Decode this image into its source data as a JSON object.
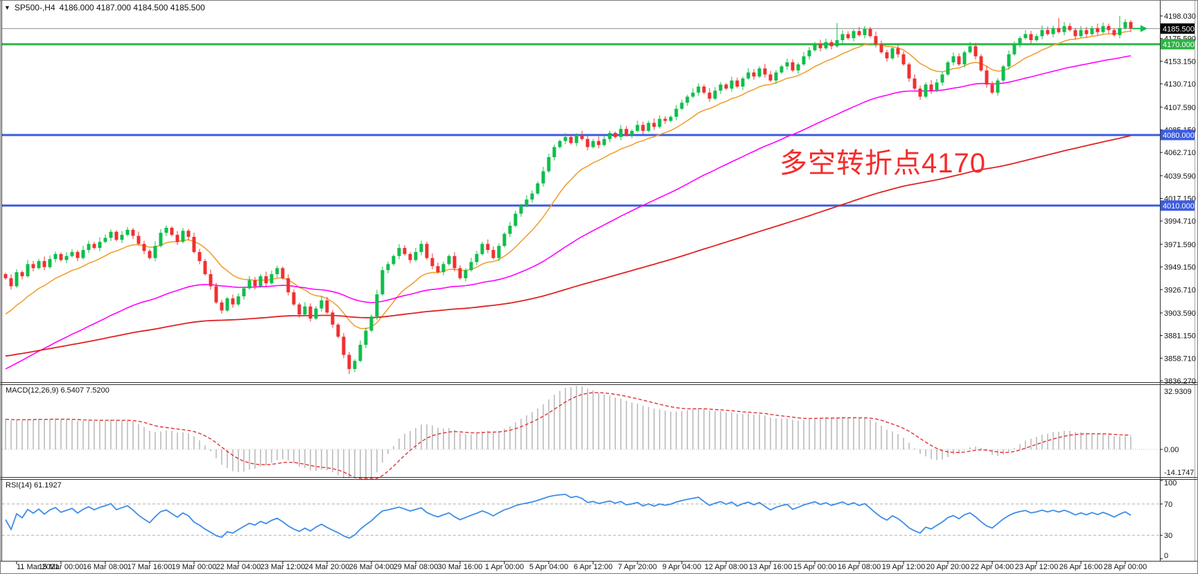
{
  "header": {
    "dropdown_arrow": "▼",
    "title": "SP500-,H4",
    "quote": "4186.000 4187.000 4184.500 4185.500"
  },
  "macd_panel": {
    "title": "MACD(12,26,9)",
    "values": "6.5407 7.5200",
    "scale_max_label": "32.9309",
    "scale_zero_label": "0.00",
    "scale_min_label": "-14.1747"
  },
  "rsi_panel": {
    "title": "RSI(14)",
    "value": "61.1927",
    "scale_labels": [
      "100",
      "70",
      "30",
      "0"
    ],
    "scale_values": [
      100,
      70,
      30,
      0
    ],
    "level_lines": [
      70,
      30
    ]
  },
  "main_chart": {
    "annotation": {
      "text": "多空转折点4170",
      "color": "#F52C2C"
    },
    "price_ticks": [
      "4198.030",
      "4175.590",
      "4153.150",
      "4130.710",
      "4107.590",
      "4085.150",
      "4062.710",
      "4039.590",
      "4017.150",
      "3994.710",
      "3971.590",
      "3949.150",
      "3926.710",
      "3903.590",
      "3881.150",
      "3858.710",
      "3836.270"
    ],
    "levels": [
      {
        "price": 4170.0,
        "label": "4170.000",
        "color": "#2DB345"
      },
      {
        "price": 4080.0,
        "label": "4080.000",
        "color": "#3B5BE0"
      },
      {
        "price": 4010.0,
        "label": "4010.000",
        "color": "#3B5BE0"
      }
    ],
    "current_price": {
      "value": 4185.5,
      "label": "4185.500",
      "line_color": "#8C8C8C",
      "badge_bg": "#000000",
      "arrow_color": "#0FBE4A"
    }
  },
  "time_axis": {
    "labels": [
      "11 Mar 2021",
      "15 Mar 00:00",
      "16 Mar 08:00",
      "17 Mar 16:00",
      "19 Mar 00:00",
      "22 Mar 04:00",
      "23 Mar 12:00",
      "24 Mar 20:00",
      "26 Mar 04:00",
      "29 Mar 08:00",
      "30 Mar 16:00",
      "1 Apr 00:00",
      "5 Apr 04:00",
      "6 Apr 12:00",
      "7 Apr 20:00",
      "9 Apr 04:00",
      "12 Apr 08:00",
      "13 Apr 16:00",
      "15 Apr 00:00",
      "16 Apr 08:00",
      "19 Apr 12:00",
      "20 Apr 20:00",
      "22 Apr 04:00",
      "23 Apr 12:00",
      "26 Apr 16:00",
      "28 Apr 00:00"
    ]
  },
  "colors": {
    "bull": "#0FBE4A",
    "bear": "#F03030",
    "ma_fast": "#F0A030",
    "ma_mid": "#FF00FF",
    "ma_slow": "#E02020",
    "macd_histogram": "#C8C8C8",
    "macd_signal": "#E03030",
    "rsi_line": "#3C8CE8",
    "rsi_dash": "#ADADAD",
    "border": "#333333"
  },
  "chart_data": {
    "type": "candlestick",
    "symbol": "SP500-",
    "timeframe": "H4",
    "title": "SP500-,H4 4186.000 4187.000 4184.500 4185.500",
    "price_axis_range": [
      3836.27,
      4198.03
    ],
    "x_range": [
      "11 Mar 2021",
      "28 Apr 2021"
    ],
    "grid": false,
    "closes": [
      3938,
      3930,
      3944,
      3940,
      3952,
      3948,
      3955,
      3949,
      3957,
      3962,
      3956,
      3960,
      3964,
      3958,
      3966,
      3972,
      3968,
      3974,
      3978,
      3984,
      3976,
      3981,
      3986,
      3980,
      3972,
      3965,
      3958,
      3970,
      3983,
      3988,
      3981,
      3974,
      3985,
      3979,
      3964,
      3955,
      3942,
      3930,
      3914,
      3906,
      3918,
      3912,
      3920,
      3928,
      3936,
      3930,
      3940,
      3933,
      3942,
      3948,
      3938,
      3924,
      3912,
      3902,
      3910,
      3898,
      3908,
      3916,
      3904,
      3892,
      3880,
      3862,
      3848,
      3856,
      3872,
      3886,
      3900,
      3922,
      3946,
      3952,
      3960,
      3968,
      3962,
      3956,
      3964,
      3972,
      3958,
      3950,
      3944,
      3952,
      3960,
      3948,
      3938,
      3946,
      3954,
      3962,
      3972,
      3966,
      3958,
      3970,
      3982,
      3990,
      4002,
      4010,
      4016,
      4022,
      4032,
      4044,
      4058,
      4068,
      4074,
      4078,
      4072,
      4080,
      4076,
      4068,
      4074,
      4070,
      4076,
      4082,
      4078,
      4086,
      4080,
      4084,
      4090,
      4084,
      4092,
      4088,
      4096,
      4094,
      4098,
      4106,
      4112,
      4118,
      4122,
      4128,
      4122,
      4116,
      4124,
      4130,
      4126,
      4134,
      4128,
      4136,
      4142,
      4138,
      4146,
      4140,
      4134,
      4142,
      4148,
      4152,
      4144,
      4150,
      4158,
      4164,
      4170,
      4166,
      4172,
      4168,
      4174,
      4180,
      4176,
      4183,
      4179,
      4185,
      4178,
      4170,
      4162,
      4156,
      4166,
      4160,
      4150,
      4136,
      4126,
      4118,
      4130,
      4124,
      4132,
      4140,
      4152,
      4158,
      4150,
      4162,
      4168,
      4158,
      4144,
      4130,
      4122,
      4134,
      4148,
      4160,
      4170,
      4176,
      4180,
      4174,
      4178,
      4184,
      4180,
      4186,
      4182,
      4188,
      4184,
      4178,
      4184,
      4180,
      4186,
      4182,
      4188,
      4184,
      4179,
      4186,
      4192,
      4185.5
    ],
    "first_open": 3942,
    "wick_overrides": {
      "62": {
        "low": 3843
      },
      "150": {
        "high": 4191
      },
      "190": {
        "high": 4196
      },
      "201": {
        "high": 4198
      }
    },
    "moving_averages": [
      {
        "name": "ma-fast",
        "period": 14,
        "seed": 3897,
        "color": "#F0A030",
        "width": 1.6
      },
      {
        "name": "ma-mid",
        "period": 60,
        "seed": 3845,
        "color": "#FF00FF",
        "width": 1.6
      },
      {
        "name": "ma-slow",
        "period": 180,
        "seed": 3860,
        "color": "#E02020",
        "width": 1.8
      }
    ],
    "horizontal_levels": [
      4170.0,
      4080.0,
      4010.0
    ],
    "current_price": 4185.5,
    "macd": {
      "fast": 12,
      "slow": 26,
      "signal": 9,
      "seed_fast": 3922,
      "seed_slow": 3906,
      "current_macd": 6.5407,
      "current_signal": 7.52,
      "scale_max": 32.9309,
      "scale_min": -14.1747
    },
    "rsi": {
      "period": 14,
      "current": 61.1927,
      "scale": [
        0,
        100
      ],
      "levels": [
        70,
        30
      ]
    }
  }
}
